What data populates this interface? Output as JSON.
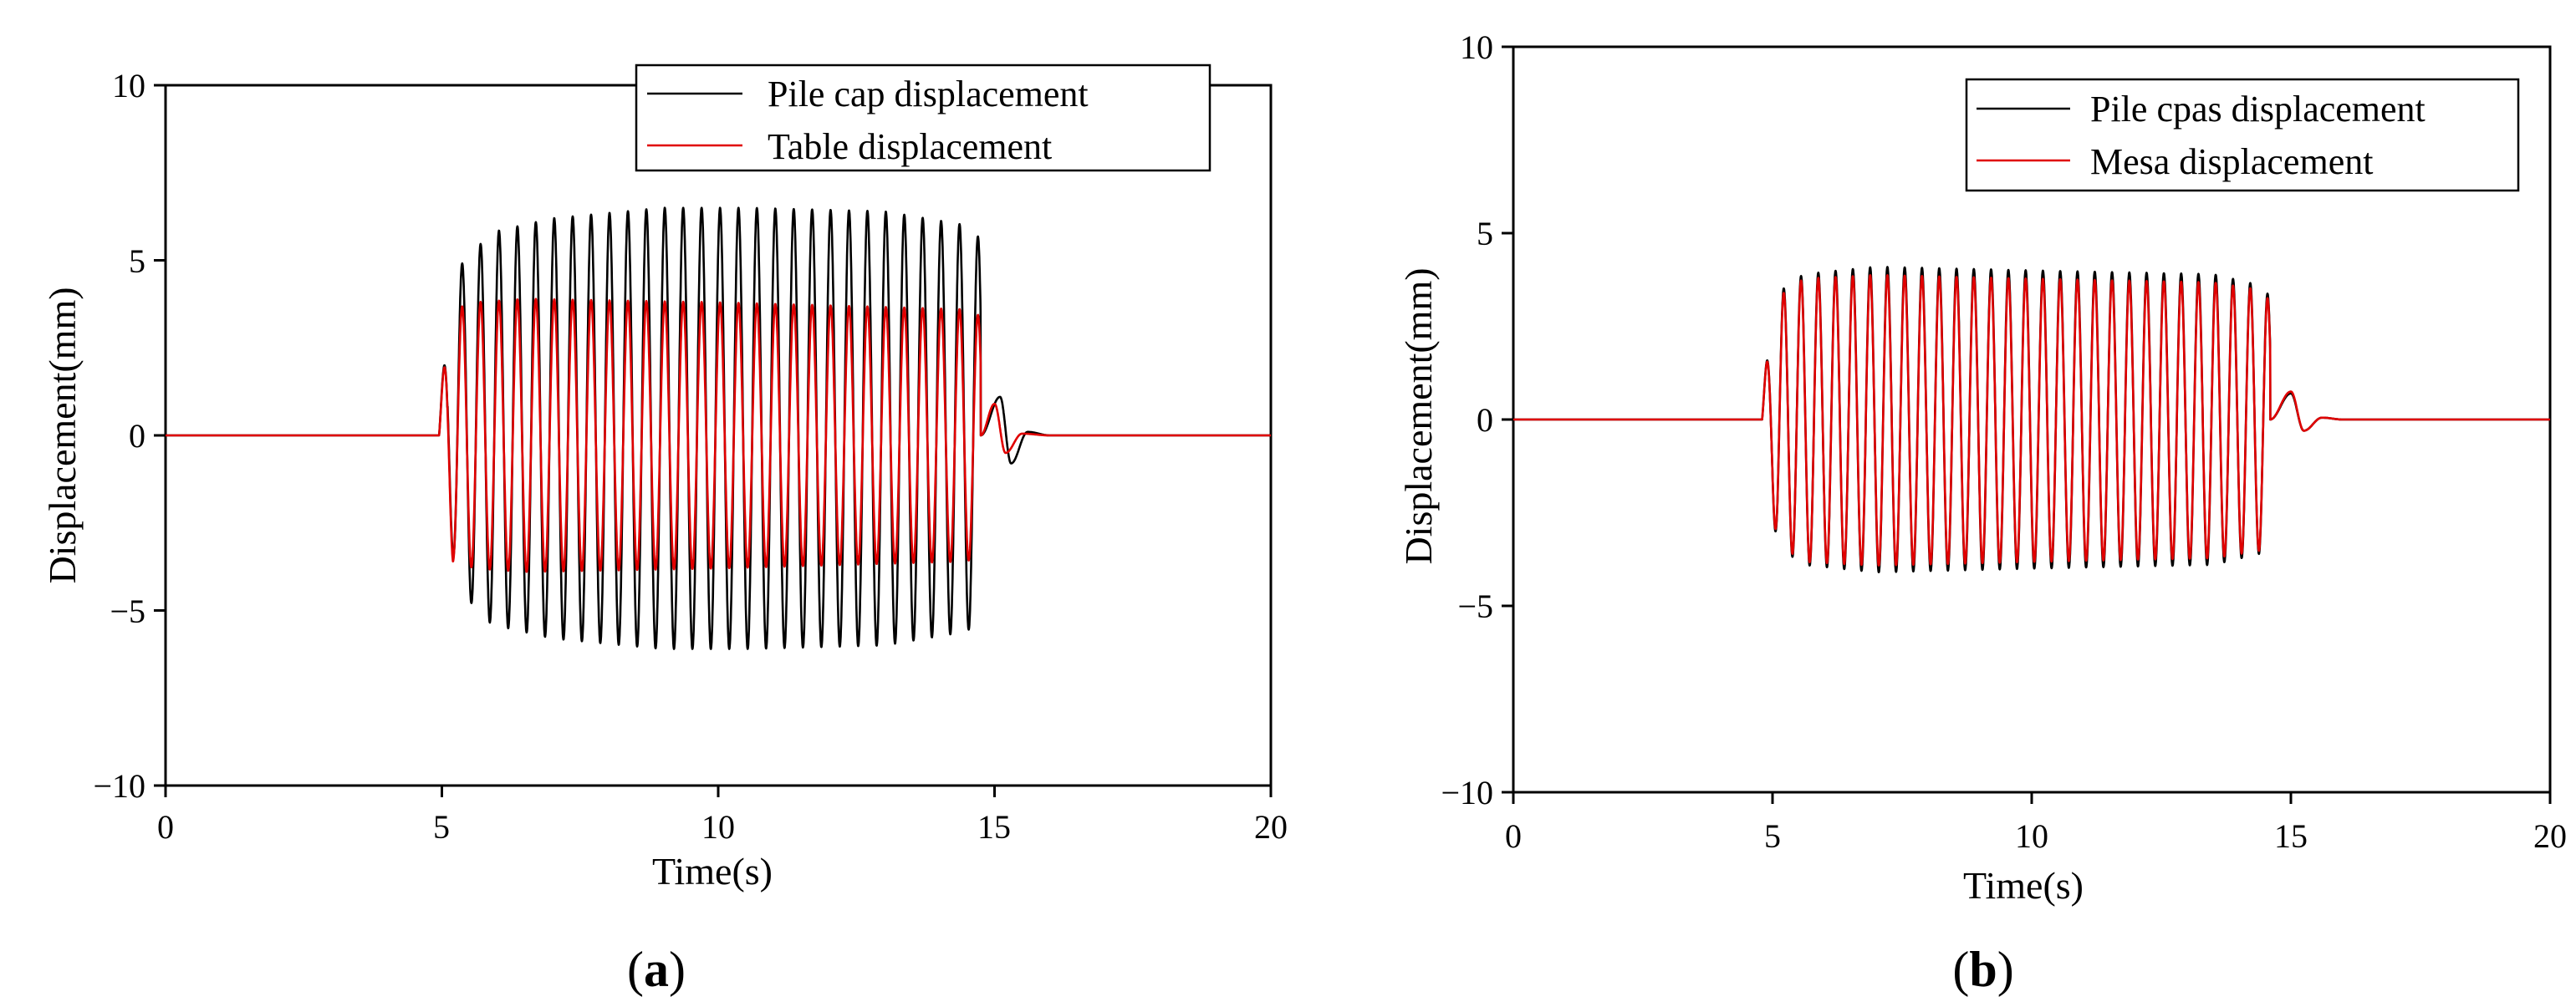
{
  "figure_labels": [
    "(a)",
    "(b)"
  ],
  "chart_data": [
    {
      "type": "line",
      "panel_label": "(a)",
      "xlabel": "Time(s)",
      "ylabel": "Displacement(mm)",
      "xlim": [
        0,
        20
      ],
      "ylim": [
        -10,
        10
      ],
      "xticks": [
        0,
        5,
        10,
        15,
        20
      ],
      "yticks": [
        -10,
        -5,
        0,
        5,
        10
      ],
      "xtick_labels": [
        "0",
        "5",
        "10",
        "15",
        "20"
      ],
      "ytick_labels": [
        "−10",
        "−5",
        "0",
        "5",
        "10"
      ],
      "grid": false,
      "legend_position": "top-right",
      "series": [
        {
          "name": "Pile cap displacement",
          "color": "#000000",
          "signal": {
            "start": 4.95,
            "stop": 14.75,
            "frequency_hz": 3.0,
            "envelope_t": [
              4.95,
              5.3,
              5.9,
              7.0,
              9.0,
              10.5,
              13.0,
              14.5,
              14.75
            ],
            "envelope_amp": [
              1.1,
              4.6,
              5.6,
              6.0,
              6.3,
              6.3,
              6.2,
              5.8,
              5.4
            ],
            "offset": 0.2,
            "tail": [
              [
                15.1,
                1.1
              ],
              [
                15.3,
                -0.8
              ],
              [
                15.6,
                0.1
              ],
              [
                16.0,
                0.0
              ]
            ]
          }
        },
        {
          "name": "Table displacement",
          "color": "#e00000",
          "signal": {
            "start": 4.95,
            "stop": 14.75,
            "frequency_hz": 3.0,
            "envelope_t": [
              4.95,
              5.2,
              5.6,
              6.5,
              10.0,
              14.5,
              14.75
            ],
            "envelope_amp": [
              1.0,
              3.6,
              3.8,
              3.9,
              3.8,
              3.6,
              3.4
            ],
            "offset": 0.0,
            "tail": [
              [
                15.0,
                0.9
              ],
              [
                15.2,
                -0.5
              ],
              [
                15.5,
                0.05
              ],
              [
                16.0,
                0.0
              ]
            ]
          }
        }
      ]
    },
    {
      "type": "line",
      "panel_label": "(b)",
      "xlabel": "Time(s)",
      "ylabel": "Displacement(mm)",
      "xlim": [
        0,
        20
      ],
      "ylim": [
        -10,
        10
      ],
      "xticks": [
        0,
        5,
        10,
        15,
        20
      ],
      "yticks": [
        -10,
        -5,
        0,
        5,
        10
      ],
      "xtick_labels": [
        "0",
        "5",
        "10",
        "15",
        "20"
      ],
      "ytick_labels": [
        "−10",
        "−5",
        "0",
        "5",
        "10"
      ],
      "grid": false,
      "legend_position": "top-right",
      "series": [
        {
          "name": "Pile cpas displacement",
          "color": "#000000",
          "signal": {
            "start": 4.8,
            "stop": 14.6,
            "frequency_hz": 3.0,
            "envelope_t": [
              4.8,
              5.1,
              5.6,
              7.0,
              10.0,
              13.5,
              14.4,
              14.6
            ],
            "envelope_amp": [
              0.8,
              3.4,
              3.9,
              4.1,
              4.0,
              3.9,
              3.6,
              3.3
            ],
            "offset": 0.0,
            "tail": [
              [
                15.0,
                0.7
              ],
              [
                15.25,
                -0.3
              ],
              [
                15.6,
                0.05
              ],
              [
                16.0,
                0.0
              ]
            ]
          }
        },
        {
          "name": "Mesa displacement",
          "color": "#e00000",
          "signal": {
            "start": 4.8,
            "stop": 14.6,
            "frequency_hz": 3.0,
            "envelope_t": [
              4.8,
              5.1,
              5.6,
              7.0,
              10.0,
              13.5,
              14.4,
              14.6
            ],
            "envelope_amp": [
              0.8,
              3.3,
              3.8,
              3.9,
              3.8,
              3.7,
              3.5,
              3.2
            ],
            "offset": -0.02,
            "tail": [
              [
                15.0,
                0.75
              ],
              [
                15.25,
                -0.3
              ],
              [
                15.6,
                0.05
              ],
              [
                16.0,
                0.0
              ]
            ]
          }
        }
      ]
    }
  ]
}
